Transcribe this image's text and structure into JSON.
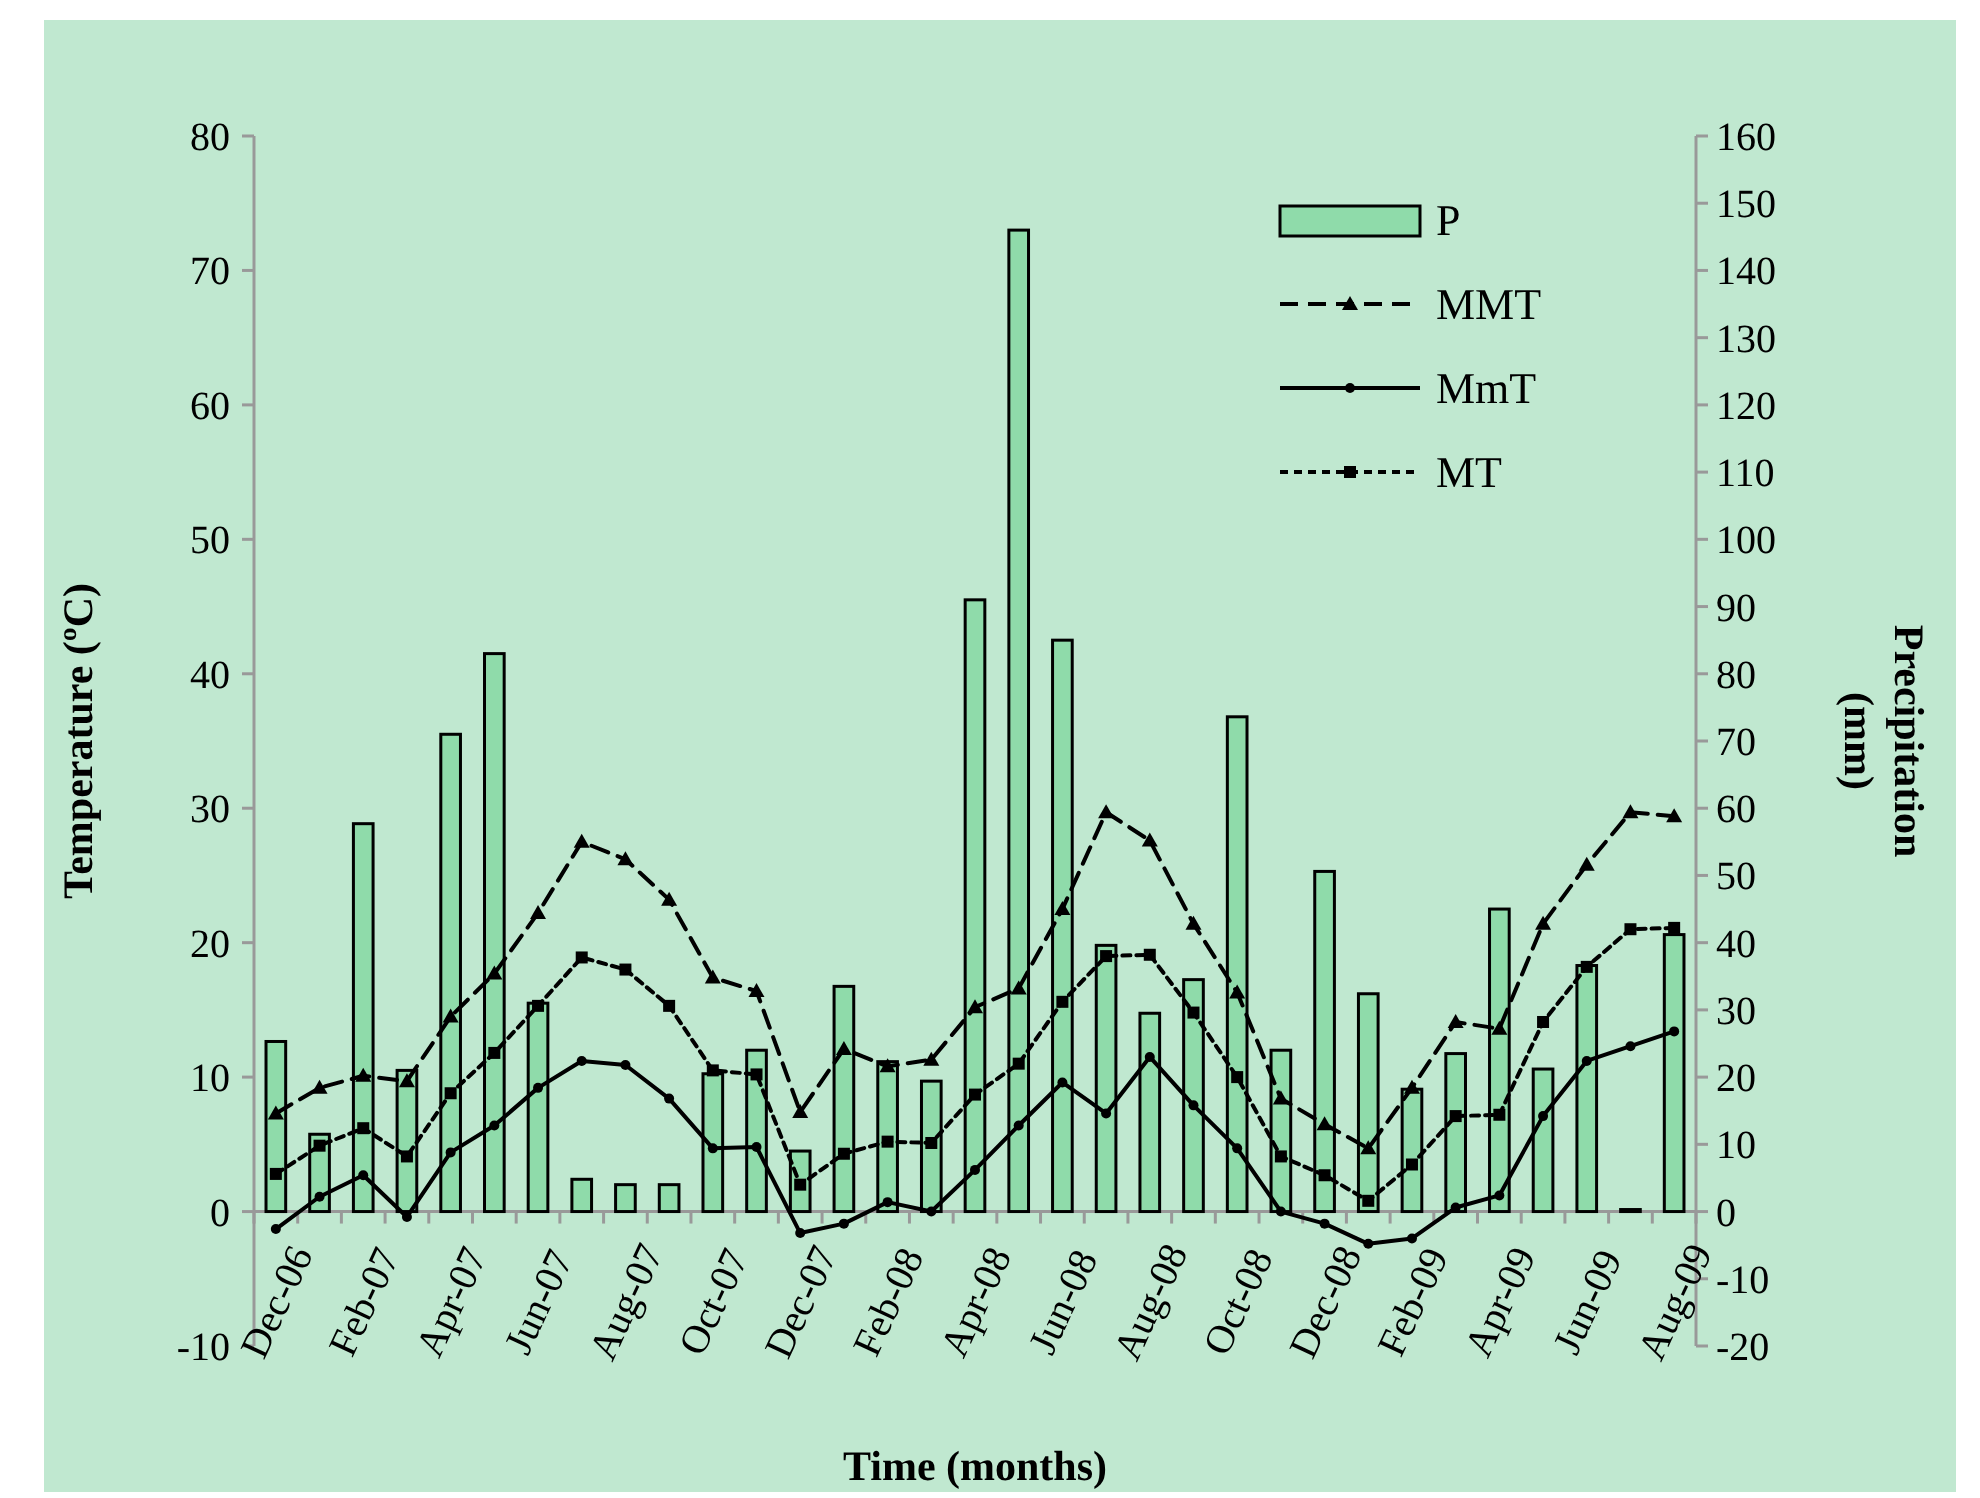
{
  "chart_data": {
    "type": "line",
    "xlabel": "Time (months)",
    "ylabel": "Temperature (ºC)",
    "y2label": "Precipitation\n(mm)",
    "categories": [
      "Dec-06",
      null,
      "Feb-07",
      null,
      "Apr-07",
      null,
      "Jun-07",
      null,
      "Aug-07",
      null,
      "Oct-07",
      null,
      "Dec-07",
      null,
      "Feb-08",
      null,
      "Apr-08",
      null,
      "Jun-08",
      null,
      "Aug-08",
      null,
      "Oct-08",
      null,
      "Dec-08",
      null,
      "Feb-09",
      null,
      "Apr-09",
      null,
      "Jun-09",
      null,
      "Aug-09"
    ],
    "series": [
      {
        "name": "P",
        "type": "bar",
        "axis": "y2",
        "color": "#8fdbaa",
        "values": [
          25.3,
          11.5,
          57.7,
          21,
          71,
          83,
          31,
          4.8,
          4,
          4,
          20.5,
          24,
          9,
          33.5,
          22.3,
          19.4,
          91,
          146,
          85,
          39.6,
          29.5,
          34.5,
          73.6,
          24,
          50.6,
          32.4,
          18.2,
          23.5,
          45,
          21.2,
          36.6,
          0.3,
          41.2
        ]
      },
      {
        "name": "MMT",
        "color": "#000000",
        "marker": "triangle",
        "line_style": "dashed",
        "values": [
          7.3,
          9.2,
          10.1,
          9.7,
          14.5,
          17.7,
          22.2,
          27.5,
          26.2,
          23.2,
          17.4,
          16.4,
          7.4,
          12.1,
          10.8,
          11.3,
          15.2,
          16.6,
          22.5,
          29.7,
          27.6,
          21.4,
          16.3,
          8.4,
          6.5,
          4.7,
          9.2,
          14.1,
          13.6,
          21.4,
          25.8,
          29.7,
          29.4
        ]
      },
      {
        "name": "MmT",
        "color": "#000000",
        "marker": "circle",
        "line_style": "solid",
        "values": [
          -1.3,
          1.1,
          2.7,
          -0.4,
          4.4,
          6.4,
          9.2,
          11.2,
          10.9,
          8.4,
          4.7,
          4.8,
          -1.6,
          -0.9,
          0.7,
          0,
          3.1,
          6.4,
          9.6,
          7.3,
          11.5,
          7.9,
          4.7,
          0,
          -0.9,
          -2.4,
          -2,
          0.3,
          1.2,
          7.1,
          11.2,
          12.3,
          13.4
        ]
      },
      {
        "name": "MT",
        "color": "#000000",
        "marker": "square",
        "line_style": "dotted",
        "values": [
          2.8,
          4.9,
          6.2,
          4.1,
          8.8,
          11.8,
          15.3,
          18.9,
          18,
          15.3,
          10.5,
          10.2,
          2,
          4.3,
          5.2,
          5.1,
          8.7,
          11,
          15.6,
          19,
          19.1,
          14.8,
          10,
          4.1,
          2.7,
          0.8,
          3.5,
          7.1,
          7.2,
          14.1,
          18.2,
          21,
          21.1
        ]
      }
    ],
    "ylim": [
      -10,
      80
    ],
    "yticks": [
      -10,
      0,
      10,
      20,
      30,
      40,
      50,
      60,
      70,
      80
    ],
    "y2lim": [
      -20,
      160
    ],
    "y2ticks": [
      -20,
      -10,
      0,
      10,
      20,
      30,
      40,
      50,
      60,
      70,
      80,
      90,
      100,
      110,
      120,
      130,
      140,
      150,
      160
    ],
    "grid": false,
    "legend": "top right"
  }
}
